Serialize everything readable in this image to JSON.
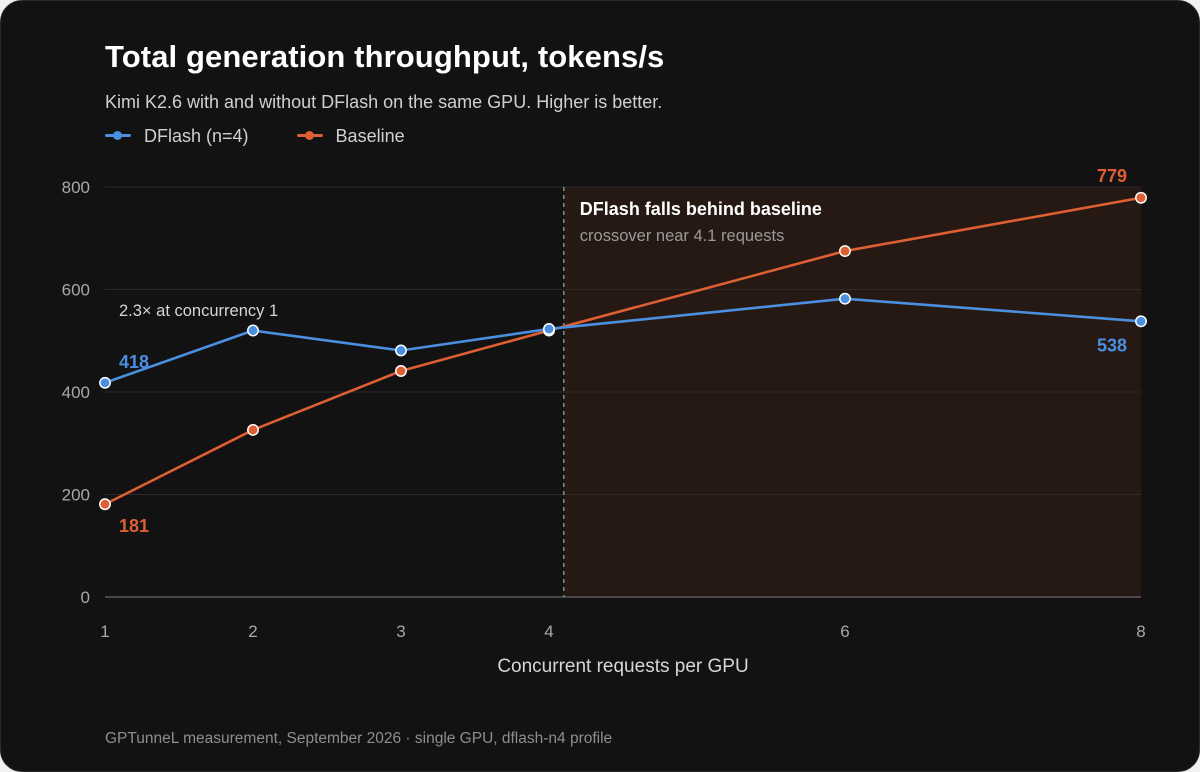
{
  "title": "Total generation throughput, tokens/s",
  "subtitle": "Kimi K2.6 with and without DFlash on the same GPU. Higher is better.",
  "footer": "GPTunneL measurement, September 2026 · single GPU, dflash-n4 profile",
  "colors": {
    "background": "#121212",
    "dflash": "#4a8fe0",
    "baseline": "#de5f33",
    "grid": "#2b2b2b",
    "shade": "#2a1b14"
  },
  "chart_data": {
    "type": "line",
    "x": [
      1,
      2,
      3,
      4,
      6,
      8
    ],
    "xlabel": "Concurrent requests per GPU",
    "ylabel": "",
    "xlim": [
      1,
      8
    ],
    "ylim": [
      0,
      800
    ],
    "xticks": [
      1,
      2,
      3,
      4,
      6,
      8
    ],
    "yticks": [
      0,
      200,
      400,
      600,
      800
    ],
    "grid": true,
    "legend_position": "top-left",
    "series": [
      {
        "name": "DFlash (n=4)",
        "key": "dflash",
        "values": [
          418,
          520,
          481,
          523,
          582,
          538
        ]
      },
      {
        "name": "Baseline",
        "key": "baseline",
        "values": [
          181,
          326,
          441,
          520,
          675,
          779
        ]
      }
    ],
    "value_labels": [
      {
        "series": "dflash",
        "x": 1,
        "text": "418"
      },
      {
        "series": "dflash",
        "x": 8,
        "text": "538"
      },
      {
        "series": "baseline",
        "x": 1,
        "text": "181"
      },
      {
        "series": "baseline",
        "x": 8,
        "text": "779"
      }
    ],
    "crossover": {
      "x": 4.1,
      "title": "DFlash falls behind baseline",
      "subtitle": "crossover near 4.1 requests"
    },
    "note": {
      "text": "2.3× at concurrency 1",
      "x": 1,
      "y": 560
    }
  }
}
